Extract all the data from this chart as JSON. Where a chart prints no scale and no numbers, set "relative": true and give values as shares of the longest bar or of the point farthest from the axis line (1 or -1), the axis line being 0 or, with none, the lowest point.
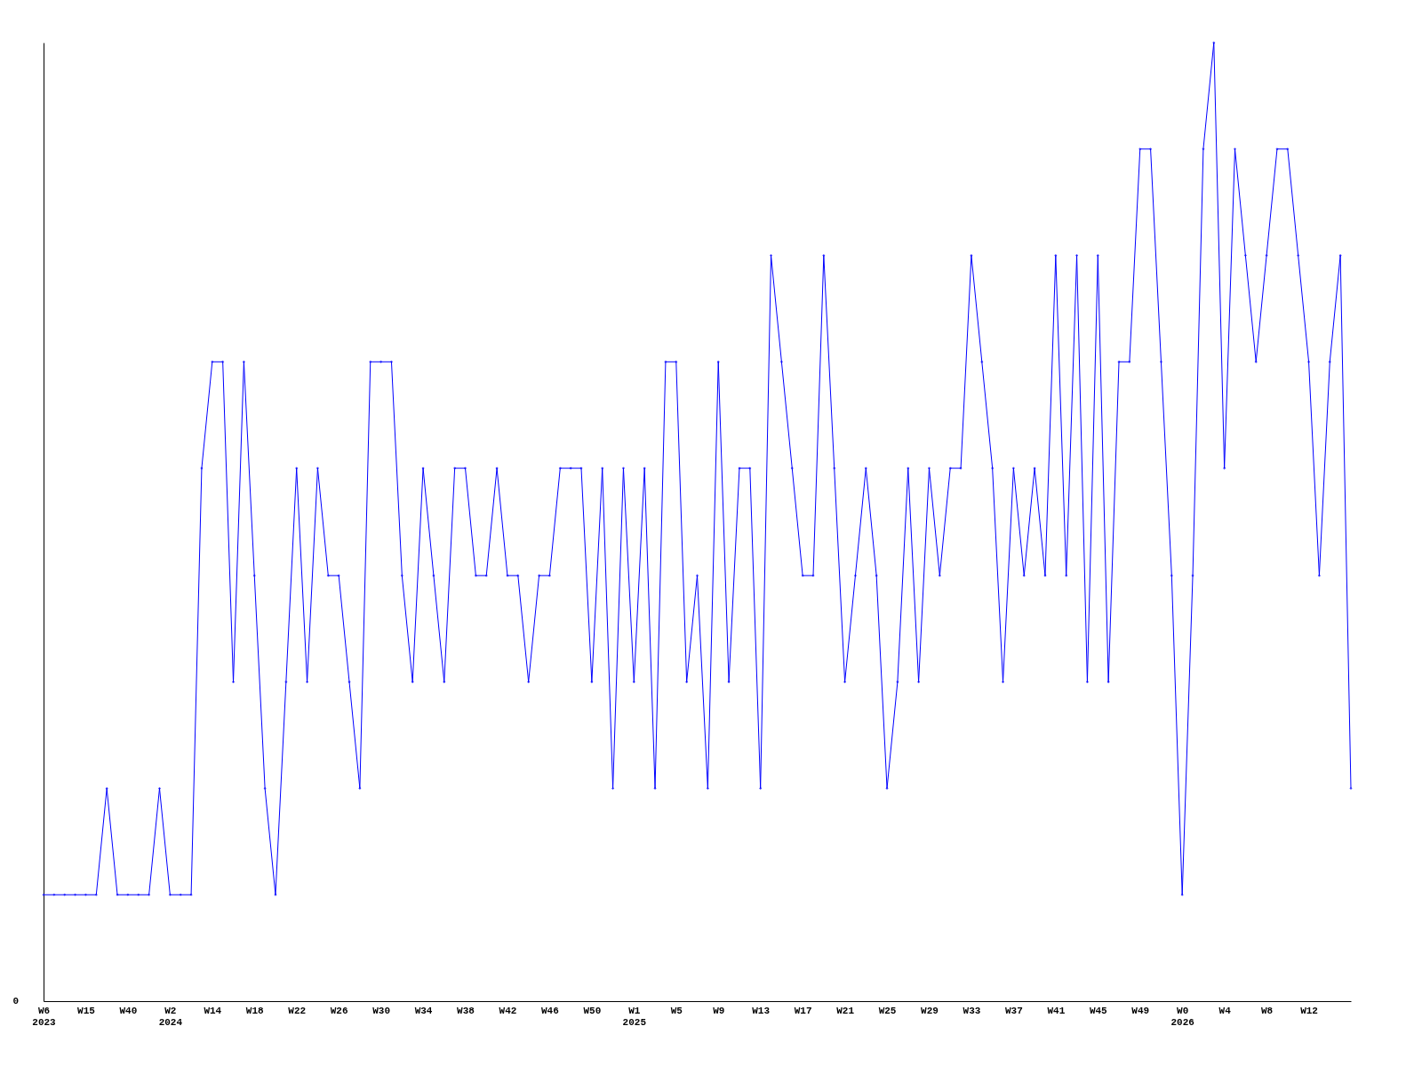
{
  "chart_data": {
    "type": "line",
    "relative": true,
    "marker": "diamond",
    "line_style": "solid",
    "annotations": [
      "0"
    ],
    "categories": [
      "W6\n2023",
      null,
      null,
      null,
      "W15",
      null,
      null,
      null,
      "W40",
      null,
      null,
      null,
      "W2\n2024",
      null,
      null,
      null,
      "W14",
      null,
      null,
      null,
      "W18",
      null,
      null,
      null,
      "W22",
      null,
      null,
      null,
      "W26",
      null,
      null,
      null,
      "W30",
      null,
      null,
      null,
      "W34",
      null,
      null,
      null,
      "W38",
      null,
      null,
      null,
      "W42",
      null,
      null,
      null,
      "W46",
      null,
      null,
      null,
      "W50",
      null,
      null,
      null,
      "W1\n2025",
      null,
      null,
      null,
      "W5",
      null,
      null,
      null,
      "W9",
      null,
      null,
      null,
      "W13",
      null,
      null,
      null,
      "W17",
      null,
      null,
      null,
      "W21",
      null,
      null,
      null,
      "W25",
      null,
      null,
      null,
      "W29",
      null,
      null,
      null,
      "W33",
      null,
      null,
      null,
      "W37",
      null,
      null,
      null,
      "W41",
      null,
      null,
      null,
      "W45",
      null,
      null,
      null,
      "W49",
      null,
      null,
      null,
      "W0\n2026",
      null,
      null,
      null,
      "W4",
      null,
      null,
      null,
      "W8",
      null,
      null,
      null,
      "W12",
      null,
      null,
      null,
      null
    ],
    "series": [
      {
        "color": "#0000ff",
        "values": [
          0.111,
          0.111,
          0.111,
          0.111,
          0.111,
          0.111,
          0.222,
          0.111,
          0.111,
          0.111,
          0.111,
          0.222,
          0.111,
          0.111,
          0.111,
          0.556,
          0.667,
          0.667,
          0.333,
          0.667,
          0.444,
          0.222,
          0.111,
          0.333,
          0.556,
          0.333,
          0.556,
          0.444,
          0.444,
          0.333,
          0.222,
          0.667,
          0.667,
          0.667,
          0.444,
          0.333,
          0.556,
          0.444,
          0.333,
          0.556,
          0.556,
          0.444,
          0.444,
          0.556,
          0.444,
          0.444,
          0.333,
          0.444,
          0.444,
          0.556,
          0.556,
          0.556,
          0.333,
          0.556,
          0.222,
          0.556,
          0.333,
          0.556,
          0.222,
          0.667,
          0.667,
          0.333,
          0.444,
          0.222,
          0.667,
          0.333,
          0.556,
          0.556,
          0.222,
          0.778,
          0.667,
          0.556,
          0.444,
          0.444,
          0.778,
          0.556,
          0.333,
          0.444,
          0.556,
          0.444,
          0.222,
          0.333,
          0.556,
          0.333,
          0.556,
          0.444,
          0.556,
          0.556,
          0.778,
          0.667,
          0.556,
          0.333,
          0.556,
          0.444,
          0.556,
          0.444,
          0.778,
          0.444,
          0.778,
          0.333,
          0.778,
          0.333,
          0.667,
          0.667,
          0.889,
          0.889,
          0.667,
          0.444,
          0.111,
          0.444,
          0.889,
          1,
          0.556,
          0.889,
          0.778,
          0.667,
          0.778,
          0.889,
          0.889,
          0.778,
          0.667,
          0.444,
          0.667,
          0.778,
          0.222
        ]
      }
    ]
  }
}
